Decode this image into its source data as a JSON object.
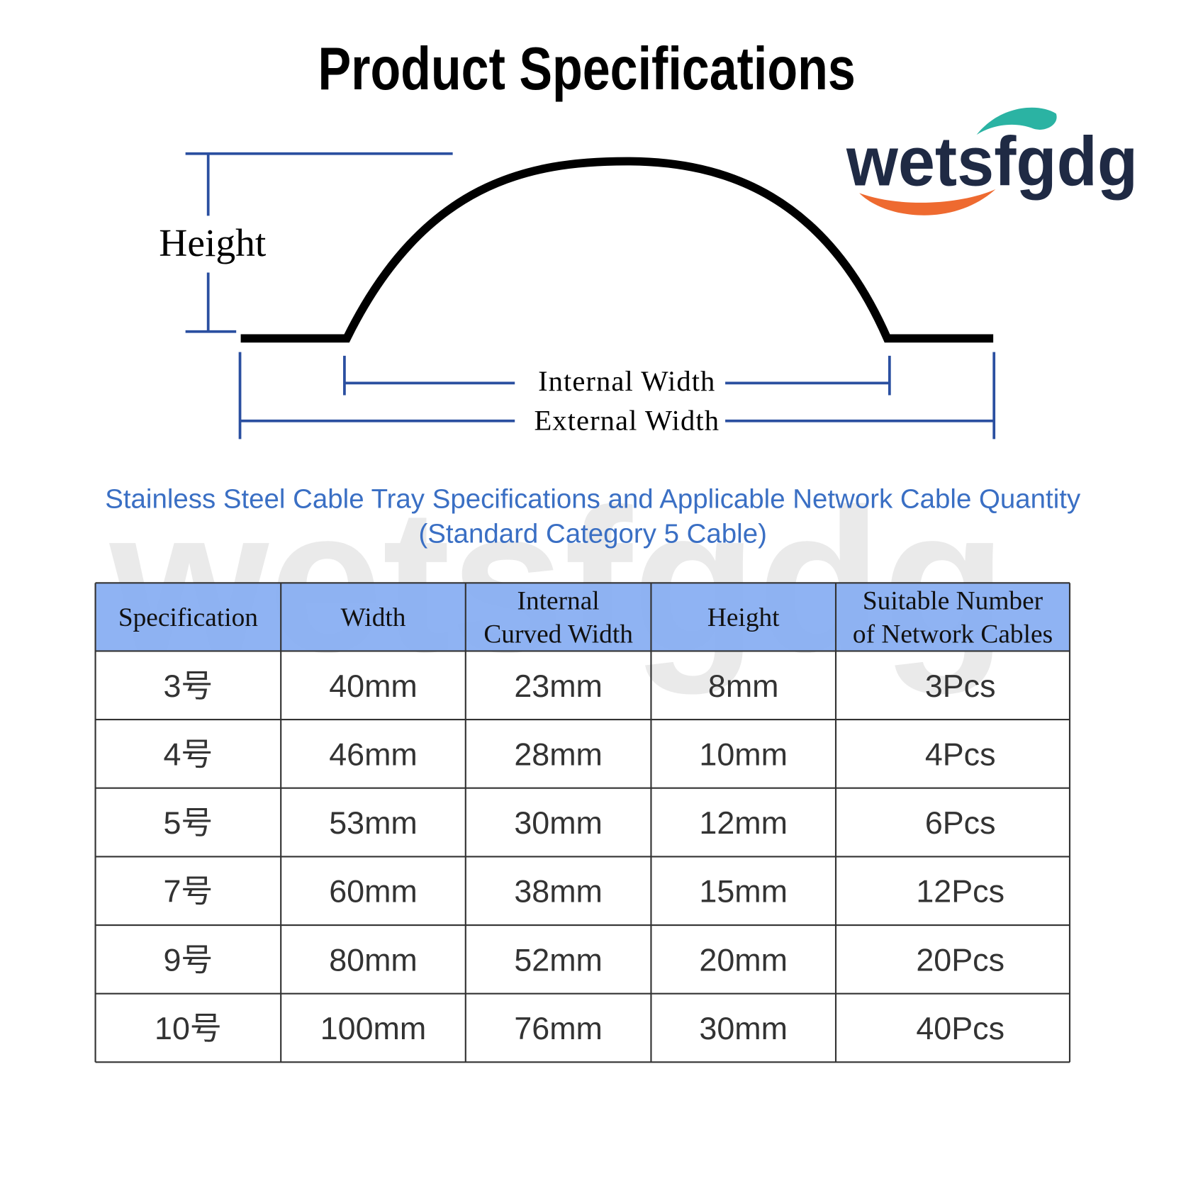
{
  "header": {
    "title": "Product Specifications",
    "brand": "wetsfgdg"
  },
  "diagram": {
    "height": "Height",
    "internal_width": "Internal Width",
    "external_width": "External Width"
  },
  "caption": {
    "line1": "Stainless Steel Cable Tray Specifications and Applicable Network Cable Quantity",
    "line2": "(Standard Category 5 Cable)"
  },
  "table": {
    "columns": [
      [
        "Specification"
      ],
      [
        "Width"
      ],
      [
        "Internal",
        "Curved Width"
      ],
      [
        "Height"
      ],
      [
        "Suitable Number",
        "of Network Cables"
      ]
    ],
    "rows": [
      [
        "3号",
        "40mm",
        "23mm",
        "8mm",
        "3Pcs"
      ],
      [
        "4号",
        "46mm",
        "28mm",
        "10mm",
        "4Pcs"
      ],
      [
        "5号",
        "53mm",
        "30mm",
        "12mm",
        "6Pcs"
      ],
      [
        "7号",
        "60mm",
        "38mm",
        "15mm",
        "12Pcs"
      ],
      [
        "9号",
        "80mm",
        "52mm",
        "20mm",
        "20Pcs"
      ],
      [
        "10号",
        "100mm",
        "76mm",
        "30mm",
        "40Pcs"
      ]
    ]
  }
}
